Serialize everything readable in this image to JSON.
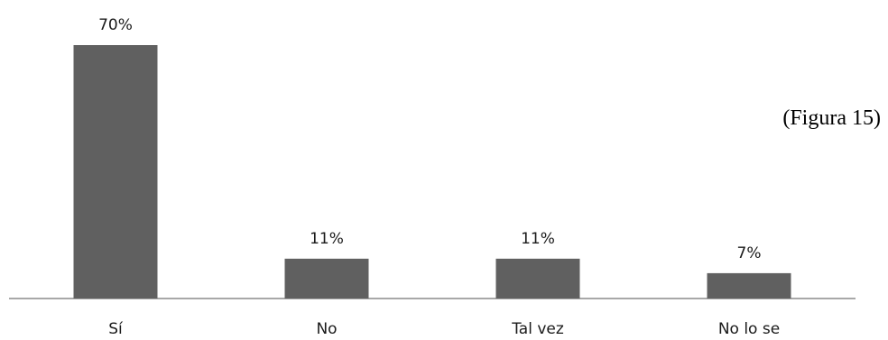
{
  "chart_data": {
    "type": "bar",
    "categories": [
      "Sí",
      "No",
      "Tal vez",
      "No lo se"
    ],
    "values": [
      70,
      11,
      11,
      7
    ],
    "value_labels": [
      "70%",
      "11%",
      "11%",
      "7%"
    ],
    "ylim": [
      0,
      70
    ],
    "grid": false,
    "legend": "none",
    "annotation": "(Figura 15)",
    "colors": {
      "bar": "#606060",
      "axis": "#8c8c8c"
    }
  }
}
